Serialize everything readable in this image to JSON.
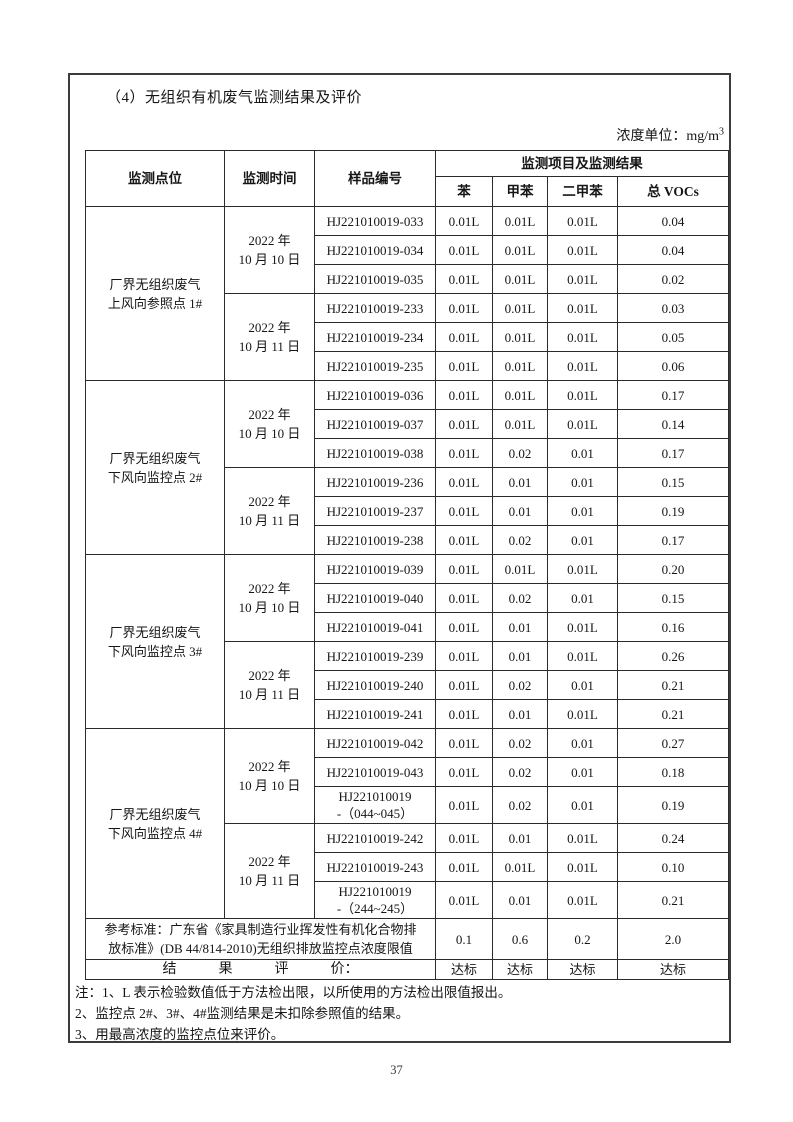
{
  "page": {
    "title": "（4）无组织有机废气监测结果及评价",
    "unit_label": "浓度单位：mg/m",
    "unit_sup": "3",
    "page_number": "37"
  },
  "table": {
    "header": {
      "point": "监测点位",
      "time": "监测时间",
      "sample": "样品编号",
      "group": "监测项目及监测结果",
      "items": [
        "苯",
        "甲苯",
        "二甲苯",
        "总 VOCs"
      ]
    },
    "blocks": [
      {
        "point_lines": [
          "厂界无组织废气",
          "上风向参照点 1#"
        ],
        "date_groups": [
          {
            "date_lines": [
              "2022 年",
              "10 月 10 日"
            ],
            "rows": [
              {
                "sample_lines": [
                  "HJ221010019-033"
                ],
                "values": [
                  "0.01L",
                  "0.01L",
                  "0.01L",
                  "0.04"
                ]
              },
              {
                "sample_lines": [
                  "HJ221010019-034"
                ],
                "values": [
                  "0.01L",
                  "0.01L",
                  "0.01L",
                  "0.04"
                ]
              },
              {
                "sample_lines": [
                  "HJ221010019-035"
                ],
                "values": [
                  "0.01L",
                  "0.01L",
                  "0.01L",
                  "0.02"
                ]
              }
            ]
          },
          {
            "date_lines": [
              "2022 年",
              "10 月 11 日"
            ],
            "rows": [
              {
                "sample_lines": [
                  "HJ221010019-233"
                ],
                "values": [
                  "0.01L",
                  "0.01L",
                  "0.01L",
                  "0.03"
                ]
              },
              {
                "sample_lines": [
                  "HJ221010019-234"
                ],
                "values": [
                  "0.01L",
                  "0.01L",
                  "0.01L",
                  "0.05"
                ]
              },
              {
                "sample_lines": [
                  "HJ221010019-235"
                ],
                "values": [
                  "0.01L",
                  "0.01L",
                  "0.01L",
                  "0.06"
                ]
              }
            ]
          }
        ]
      },
      {
        "point_lines": [
          "厂界无组织废气",
          "下风向监控点 2#"
        ],
        "date_groups": [
          {
            "date_lines": [
              "2022 年",
              "10 月 10 日"
            ],
            "rows": [
              {
                "sample_lines": [
                  "HJ221010019-036"
                ],
                "values": [
                  "0.01L",
                  "0.01L",
                  "0.01L",
                  "0.17"
                ]
              },
              {
                "sample_lines": [
                  "HJ221010019-037"
                ],
                "values": [
                  "0.01L",
                  "0.01L",
                  "0.01L",
                  "0.14"
                ]
              },
              {
                "sample_lines": [
                  "HJ221010019-038"
                ],
                "values": [
                  "0.01L",
                  "0.02",
                  "0.01",
                  "0.17"
                ]
              }
            ]
          },
          {
            "date_lines": [
              "2022 年",
              "10 月 11 日"
            ],
            "rows": [
              {
                "sample_lines": [
                  "HJ221010019-236"
                ],
                "values": [
                  "0.01L",
                  "0.01",
                  "0.01",
                  "0.15"
                ]
              },
              {
                "sample_lines": [
                  "HJ221010019-237"
                ],
                "values": [
                  "0.01L",
                  "0.01",
                  "0.01",
                  "0.19"
                ]
              },
              {
                "sample_lines": [
                  "HJ221010019-238"
                ],
                "values": [
                  "0.01L",
                  "0.02",
                  "0.01",
                  "0.17"
                ]
              }
            ]
          }
        ]
      },
      {
        "point_lines": [
          "厂界无组织废气",
          "下风向监控点 3#"
        ],
        "date_groups": [
          {
            "date_lines": [
              "2022 年",
              "10 月 10 日"
            ],
            "rows": [
              {
                "sample_lines": [
                  "HJ221010019-039"
                ],
                "values": [
                  "0.01L",
                  "0.01L",
                  "0.01L",
                  "0.20"
                ]
              },
              {
                "sample_lines": [
                  "HJ221010019-040"
                ],
                "values": [
                  "0.01L",
                  "0.02",
                  "0.01",
                  "0.15"
                ]
              },
              {
                "sample_lines": [
                  "HJ221010019-041"
                ],
                "values": [
                  "0.01L",
                  "0.01",
                  "0.01L",
                  "0.16"
                ]
              }
            ]
          },
          {
            "date_lines": [
              "2022 年",
              "10 月 11 日"
            ],
            "rows": [
              {
                "sample_lines": [
                  "HJ221010019-239"
                ],
                "values": [
                  "0.01L",
                  "0.01",
                  "0.01L",
                  "0.26"
                ]
              },
              {
                "sample_lines": [
                  "HJ221010019-240"
                ],
                "values": [
                  "0.01L",
                  "0.02",
                  "0.01",
                  "0.21"
                ]
              },
              {
                "sample_lines": [
                  "HJ221010019-241"
                ],
                "values": [
                  "0.01L",
                  "0.01",
                  "0.01L",
                  "0.21"
                ]
              }
            ]
          }
        ]
      },
      {
        "point_lines": [
          "厂界无组织废气",
          "下风向监控点 4#"
        ],
        "date_groups": [
          {
            "date_lines": [
              "2022 年",
              "10 月 10 日"
            ],
            "rows": [
              {
                "sample_lines": [
                  "HJ221010019-042"
                ],
                "values": [
                  "0.01L",
                  "0.02",
                  "0.01",
                  "0.27"
                ]
              },
              {
                "sample_lines": [
                  "HJ221010019-043"
                ],
                "values": [
                  "0.01L",
                  "0.02",
                  "0.01",
                  "0.18"
                ]
              },
              {
                "sample_lines": [
                  "HJ221010019",
                  "-（044~045）"
                ],
                "values": [
                  "0.01L",
                  "0.02",
                  "0.01",
                  "0.19"
                ]
              }
            ]
          },
          {
            "date_lines": [
              "2022 年",
              "10 月 11 日"
            ],
            "rows": [
              {
                "sample_lines": [
                  "HJ221010019-242"
                ],
                "values": [
                  "0.01L",
                  "0.01",
                  "0.01L",
                  "0.24"
                ]
              },
              {
                "sample_lines": [
                  "HJ221010019-243"
                ],
                "values": [
                  "0.01L",
                  "0.01L",
                  "0.01L",
                  "0.10"
                ]
              },
              {
                "sample_lines": [
                  "HJ221010019",
                  "-（244~245）"
                ],
                "values": [
                  "0.01L",
                  "0.01",
                  "0.01L",
                  "0.21"
                ]
              }
            ]
          }
        ]
      }
    ],
    "reference_row": {
      "label_lines": [
        "参考标准：广东省《家具制造行业挥发性有机化合物排",
        "放标准》(DB 44/814-2010)无组织排放监控点浓度限值"
      ],
      "values": [
        "0.1",
        "0.6",
        "0.2",
        "2.0"
      ]
    },
    "evaluation_row": {
      "label": "结　　　果　　　评　　　价：",
      "values": [
        "达标",
        "达标",
        "达标",
        "达标"
      ]
    }
  },
  "notes": [
    "注：1、L 表示检验数值低于方法检出限，以所使用的方法检出限值报出。",
    "2、监控点 2#、3#、4#监测结果是未扣除参照值的结果。",
    "3、用最高浓度的监控点位来评价。"
  ]
}
